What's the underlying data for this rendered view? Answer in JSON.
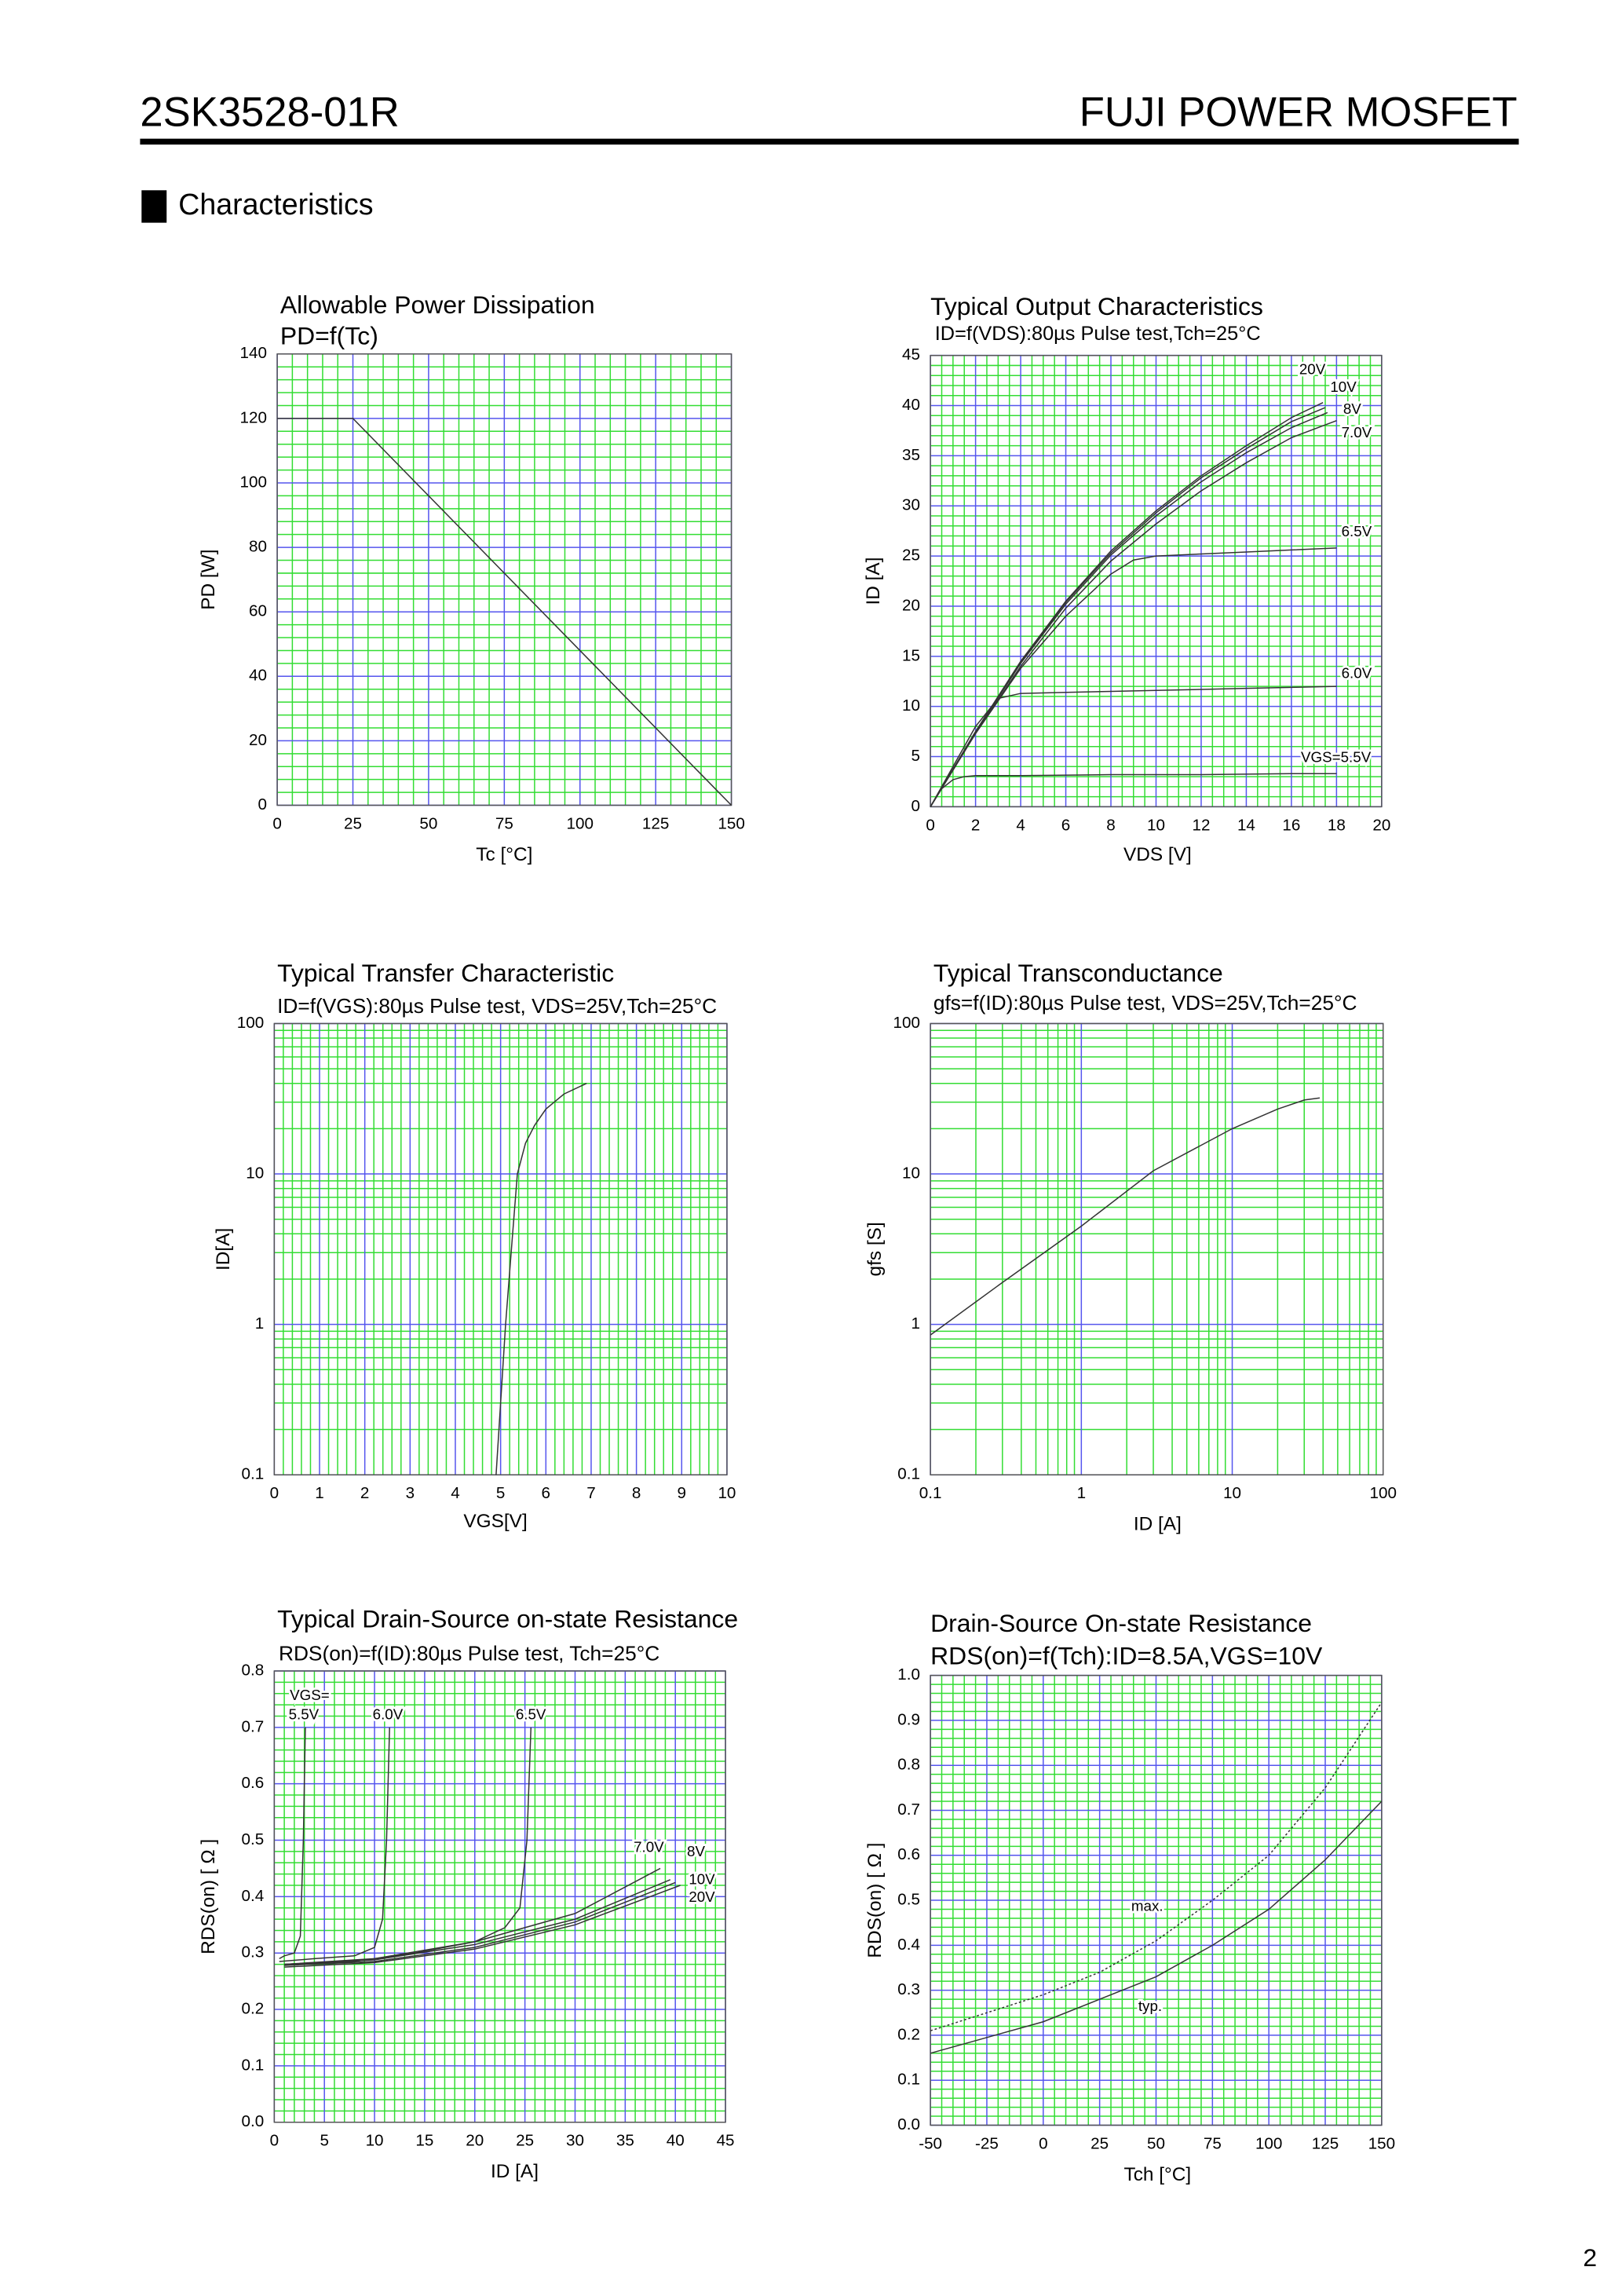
{
  "header": {
    "part": "2SK3528-01R",
    "brand": "FUJI POWER MOSFET"
  },
  "section": "Characteristics",
  "page_number": "2",
  "chart_data": [
    {
      "type": "line",
      "title": "Allowable Power Dissipation",
      "subtitle": "PD=f(Tc)",
      "x_label": "Tc [°C]",
      "y_label": "PD [W]",
      "xlim": [
        0,
        150
      ],
      "xticks": [
        0,
        25,
        50,
        75,
        100,
        125,
        150
      ],
      "ylim": [
        0,
        140
      ],
      "yticks": [
        0,
        20,
        40,
        60,
        80,
        100,
        120,
        140
      ],
      "minor_divisions": [
        5,
        5
      ],
      "grid_color": "#5555ee",
      "minor_grid_color": "#33dd33",
      "series": [
        {
          "color": "#333333",
          "x": [
            0,
            25,
            150
          ],
          "values": [
            120,
            120,
            0
          ]
        }
      ]
    },
    {
      "type": "line",
      "title": "Typical Output Characteristics",
      "subtitle": "ID=f(VDS):80µs Pulse test,Tch=25°C",
      "x_label": "VDS [V]",
      "y_label": "ID [A]",
      "xlim": [
        0,
        20
      ],
      "xticks": [
        0,
        2,
        4,
        6,
        8,
        10,
        12,
        14,
        16,
        18,
        20
      ],
      "ylim": [
        0,
        45
      ],
      "yticks": [
        0,
        5,
        10,
        15,
        20,
        25,
        30,
        35,
        40,
        45
      ],
      "minor_divisions": [
        4,
        5
      ],
      "grid_color": "#5555ee",
      "minor_grid_color": "#33dd33",
      "series": [
        {
          "name": "20V",
          "color": "#333333",
          "x": [
            0,
            2,
            4,
            6,
            8,
            10,
            12,
            14,
            16,
            17.4
          ],
          "values": [
            0,
            7.5,
            14.5,
            20.5,
            25.5,
            29.5,
            33,
            36,
            38.8,
            40.3
          ]
        },
        {
          "name": "10V",
          "color": "#333333",
          "x": [
            0,
            2,
            4,
            6,
            8,
            10,
            12,
            14,
            16,
            17.5
          ],
          "values": [
            0,
            7.5,
            14.4,
            20.4,
            25.3,
            29.3,
            32.8,
            35.7,
            38.4,
            39.8
          ]
        },
        {
          "name": "8V",
          "color": "#333333",
          "x": [
            0,
            2,
            4,
            6,
            8,
            10,
            12,
            14,
            16,
            17.6
          ],
          "values": [
            0,
            7.4,
            14.3,
            20.2,
            25.1,
            29,
            32.4,
            35.3,
            37.8,
            39.3
          ]
        },
        {
          "name": "7.0V",
          "color": "#333333",
          "x": [
            0,
            2,
            4,
            6,
            8,
            10,
            12,
            14,
            16,
            18
          ],
          "values": [
            0,
            7.3,
            14,
            19.8,
            24.5,
            28.2,
            31.5,
            34.3,
            36.8,
            38.5
          ]
        },
        {
          "name": "6.5V",
          "color": "#333333",
          "x": [
            0,
            2,
            4,
            6,
            8,
            9,
            10,
            12,
            14,
            16,
            18
          ],
          "values": [
            0,
            7.3,
            13.8,
            19,
            23.2,
            24.6,
            25,
            25.2,
            25.4,
            25.6,
            25.8
          ]
        },
        {
          "name": "6.0V",
          "color": "#333333",
          "x": [
            0,
            1,
            2,
            3,
            4,
            6,
            8,
            10,
            12,
            14,
            16,
            18
          ],
          "values": [
            0,
            4,
            8,
            10.8,
            11.3,
            11.4,
            11.5,
            11.6,
            11.7,
            11.8,
            11.9,
            12
          ]
        },
        {
          "name": "VGS=5.5V",
          "color": "#333333",
          "x": [
            0,
            0.5,
            1,
            1.5,
            2,
            4,
            8,
            12,
            16,
            18
          ],
          "values": [
            0,
            1.8,
            2.7,
            3,
            3.1,
            3.1,
            3.2,
            3.2,
            3.3,
            3.3
          ]
        }
      ]
    },
    {
      "type": "line",
      "title": "Typical Transfer Characteristic",
      "subtitle": "ID=f(VGS):80µs Pulse test, VDS=25V,Tch=25°C",
      "x_label": "VGS[V]",
      "y_label": "ID[A]",
      "xlim": [
        0,
        10
      ],
      "xticks": [
        0,
        1,
        2,
        3,
        4,
        5,
        6,
        7,
        8,
        9,
        10
      ],
      "ylim": [
        0.1,
        100
      ],
      "yticks": [
        0.1,
        1,
        10,
        100
      ],
      "yscale": "log",
      "minor_divisions": [
        5,
        5
      ],
      "grid_color": "#5555ee",
      "minor_grid_color": "#33dd33",
      "series": [
        {
          "color": "#333333",
          "x": [
            4.9,
            5.0,
            5.11,
            5.25,
            5.37,
            5.55,
            5.75,
            6.0,
            6.4,
            6.9
          ],
          "values": [
            0.1,
            0.3,
            1,
            3.5,
            10,
            16,
            21,
            27,
            34,
            40
          ]
        }
      ]
    },
    {
      "type": "line",
      "title": "Typical Transconductance",
      "subtitle": "gfs=f(ID):80µs Pulse test, VDS=25V,Tch=25°C",
      "x_label": "ID [A]",
      "y_label": "gfs [S]",
      "xlim": [
        0.1,
        100
      ],
      "xticks": [
        0.1,
        1,
        10,
        100
      ],
      "xscale": "log",
      "ylim": [
        0.1,
        100
      ],
      "yticks": [
        0.1,
        1,
        10,
        100
      ],
      "yscale": "log",
      "grid_color": "#5555ee",
      "minor_grid_color": "#33dd33",
      "series": [
        {
          "color": "#333333",
          "x": [
            0.1,
            0.3,
            1,
            3,
            10,
            20,
            30,
            38
          ],
          "values": [
            0.85,
            1.9,
            4.5,
            10.5,
            20,
            27,
            31,
            32
          ]
        }
      ]
    },
    {
      "type": "line",
      "title": "Typical Drain-Source on-state Resistance",
      "subtitle": "RDS(on)=f(ID):80µs Pulse test, Tch=25°C",
      "x_label": "ID [A]",
      "y_label": "RDS(on) [ Ω ]",
      "xlim": [
        0,
        45
      ],
      "xticks": [
        0,
        5,
        10,
        15,
        20,
        25,
        30,
        35,
        40,
        45
      ],
      "ylim": [
        0,
        0.8
      ],
      "yticks": [
        {
          "value": 0,
          "label": "0.0"
        },
        0.1,
        0.2,
        0.3,
        0.4,
        0.5,
        0.6,
        0.7,
        0.8
      ],
      "minor_divisions": [
        5,
        5
      ],
      "grid_color": "#5555ee",
      "minor_grid_color": "#33dd33",
      "annotations": [
        "VGS="
      ],
      "series": [
        {
          "name": "5.5V",
          "color": "#333333",
          "x": [
            0.5,
            1,
            2,
            2.6,
            2.9,
            3.1
          ],
          "values": [
            0.29,
            0.295,
            0.3,
            0.33,
            0.5,
            0.7
          ]
        },
        {
          "name": "6.0V",
          "color": "#333333",
          "x": [
            0.5,
            4,
            8,
            10,
            10.8,
            11.2,
            11.5
          ],
          "values": [
            0.285,
            0.29,
            0.295,
            0.31,
            0.36,
            0.5,
            0.7
          ]
        },
        {
          "name": "6.5V",
          "color": "#333333",
          "x": [
            1,
            8,
            14,
            20,
            23,
            24.5,
            25.2,
            25.6
          ],
          "values": [
            0.28,
            0.285,
            0.3,
            0.32,
            0.345,
            0.38,
            0.5,
            0.7
          ]
        },
        {
          "name": "7.0V",
          "color": "#333333",
          "x": [
            1,
            10,
            20,
            30,
            38.5
          ],
          "values": [
            0.28,
            0.29,
            0.32,
            0.37,
            0.45
          ]
        },
        {
          "name": "8V",
          "color": "#333333",
          "x": [
            1,
            10,
            20,
            30,
            39.5
          ],
          "values": [
            0.28,
            0.288,
            0.315,
            0.36,
            0.43
          ]
        },
        {
          "name": "10V",
          "color": "#333333",
          "x": [
            1,
            10,
            20,
            30,
            40
          ],
          "values": [
            0.278,
            0.285,
            0.31,
            0.355,
            0.425
          ]
        },
        {
          "name": "20V",
          "color": "#333333",
          "x": [
            1,
            10,
            20,
            30,
            40.5
          ],
          "values": [
            0.275,
            0.283,
            0.307,
            0.35,
            0.42
          ]
        }
      ]
    },
    {
      "type": "line",
      "title": "Drain-Source On-state Resistance",
      "subtitle": "RDS(on)=f(Tch):ID=8.5A,VGS=10V",
      "x_label": "Tch [°C]",
      "y_label": "RDS(on) [ Ω ]",
      "xlim": [
        -50,
        150
      ],
      "xticks": [
        -50,
        -25,
        0,
        25,
        50,
        75,
        100,
        125,
        150
      ],
      "ylim": [
        0,
        1
      ],
      "yticks": [
        {
          "value": 0,
          "label": "0.0"
        },
        0.1,
        0.2,
        0.3,
        0.4,
        0.5,
        0.6,
        0.7,
        0.8,
        0.9,
        {
          "value": 1,
          "label": "1.0"
        }
      ],
      "minor_divisions": [
        5,
        5
      ],
      "grid_color": "#5555ee",
      "minor_grid_color": "#33dd33",
      "series": [
        {
          "name": "max.",
          "color": "#333333",
          "dashed": true,
          "x": [
            -50,
            -25,
            0,
            25,
            50,
            75,
            100,
            125,
            150
          ],
          "values": [
            0.21,
            0.25,
            0.29,
            0.34,
            0.41,
            0.5,
            0.6,
            0.75,
            0.94
          ]
        },
        {
          "name": "typ.",
          "color": "#333333",
          "x": [
            -50,
            -25,
            0,
            25,
            50,
            75,
            100,
            125,
            150
          ],
          "values": [
            0.16,
            0.195,
            0.23,
            0.28,
            0.33,
            0.4,
            0.48,
            0.59,
            0.72
          ]
        }
      ]
    }
  ]
}
